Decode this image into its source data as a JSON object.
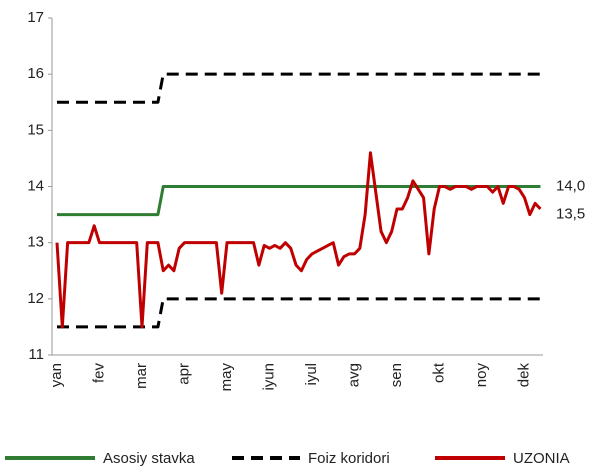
{
  "chart_data": {
    "type": "line",
    "categories": [
      "yan",
      null,
      null,
      null,
      null,
      null,
      null,
      null,
      "fev",
      null,
      null,
      null,
      null,
      null,
      null,
      null,
      "mar",
      null,
      null,
      null,
      null,
      null,
      null,
      null,
      "apr",
      null,
      null,
      null,
      null,
      null,
      null,
      null,
      "may",
      null,
      null,
      null,
      null,
      null,
      null,
      null,
      "iyun",
      null,
      null,
      null,
      null,
      null,
      null,
      null,
      "iyul",
      null,
      null,
      null,
      null,
      null,
      null,
      null,
      "avg",
      null,
      null,
      null,
      null,
      null,
      null,
      null,
      "sen",
      null,
      null,
      null,
      null,
      null,
      null,
      null,
      "okt",
      null,
      null,
      null,
      null,
      null,
      null,
      null,
      "noy",
      null,
      null,
      null,
      null,
      null,
      null,
      null,
      "dek",
      null,
      null,
      null
    ],
    "series": [
      {
        "name": "Asosiy stavka",
        "color": "#2e7d32",
        "dash": false,
        "values": [
          13.5,
          13.5,
          13.5,
          13.5,
          13.5,
          13.5,
          13.5,
          13.5,
          13.5,
          13.5,
          13.5,
          13.5,
          13.5,
          13.5,
          13.5,
          13.5,
          13.5,
          13.5,
          13.5,
          13.5,
          14,
          14,
          14,
          14,
          14,
          14,
          14,
          14,
          14,
          14,
          14,
          14,
          14,
          14,
          14,
          14,
          14,
          14,
          14,
          14,
          14,
          14,
          14,
          14,
          14,
          14,
          14,
          14,
          14,
          14,
          14,
          14,
          14,
          14,
          14,
          14,
          14,
          14,
          14,
          14,
          14,
          14,
          14,
          14,
          14,
          14,
          14,
          14,
          14,
          14,
          14,
          14,
          14,
          14,
          14,
          14,
          14,
          14,
          14,
          14,
          14,
          14,
          14,
          14,
          14,
          14,
          14,
          14,
          14,
          14,
          14,
          14
        ]
      },
      {
        "name": "Foiz koridori",
        "color": "#000000",
        "dash": true,
        "values": [
          15.5,
          15.5,
          15.5,
          15.5,
          15.5,
          15.5,
          15.5,
          15.5,
          15.5,
          15.5,
          15.5,
          15.5,
          15.5,
          15.5,
          15.5,
          15.5,
          15.5,
          15.5,
          15.5,
          15.5,
          16,
          16,
          16,
          16,
          16,
          16,
          16,
          16,
          16,
          16,
          16,
          16,
          16,
          16,
          16,
          16,
          16,
          16,
          16,
          16,
          16,
          16,
          16,
          16,
          16,
          16,
          16,
          16,
          16,
          16,
          16,
          16,
          16,
          16,
          16,
          16,
          16,
          16,
          16,
          16,
          16,
          16,
          16,
          16,
          16,
          16,
          16,
          16,
          16,
          16,
          16,
          16,
          16,
          16,
          16,
          16,
          16,
          16,
          16,
          16,
          16,
          16,
          16,
          16,
          16,
          16,
          16,
          16,
          16,
          16,
          16,
          16
        ]
      },
      {
        "color": "#000000",
        "dash": true,
        "values": [
          11.5,
          11.5,
          11.5,
          11.5,
          11.5,
          11.5,
          11.5,
          11.5,
          11.5,
          11.5,
          11.5,
          11.5,
          11.5,
          11.5,
          11.5,
          11.5,
          11.5,
          11.5,
          11.5,
          11.5,
          12,
          12,
          12,
          12,
          12,
          12,
          12,
          12,
          12,
          12,
          12,
          12,
          12,
          12,
          12,
          12,
          12,
          12,
          12,
          12,
          12,
          12,
          12,
          12,
          12,
          12,
          12,
          12,
          12,
          12,
          12,
          12,
          12,
          12,
          12,
          12,
          12,
          12,
          12,
          12,
          12,
          12,
          12,
          12,
          12,
          12,
          12,
          12,
          12,
          12,
          12,
          12,
          12,
          12,
          12,
          12,
          12,
          12,
          12,
          12,
          12,
          12,
          12,
          12,
          12,
          12,
          12,
          12,
          12,
          12,
          12,
          12
        ]
      },
      {
        "name": "UZONIA",
        "color": "#c00000",
        "dash": false,
        "values": [
          13,
          11.5,
          13,
          13,
          13,
          13,
          13,
          13.3,
          13,
          13,
          13,
          13,
          13,
          13,
          13,
          13,
          11.5,
          13,
          13,
          13,
          12.5,
          12.6,
          12.5,
          12.9,
          13,
          13,
          13,
          13,
          13,
          13,
          13,
          12.1,
          13,
          13,
          13,
          13,
          13,
          13,
          12.6,
          12.95,
          12.9,
          12.95,
          12.9,
          13,
          12.9,
          12.6,
          12.5,
          12.7,
          12.8,
          12.85,
          12.9,
          12.95,
          13,
          12.6,
          12.75,
          12.8,
          12.8,
          12.9,
          13.5,
          14.6,
          13.9,
          13.2,
          13,
          13.2,
          13.6,
          13.6,
          13.8,
          14.1,
          13.95,
          13.8,
          12.8,
          13.6,
          14,
          14,
          13.95,
          14,
          14,
          14,
          13.95,
          14,
          14,
          14,
          13.9,
          14,
          13.7,
          14,
          14,
          13.95,
          13.8,
          13.5,
          13.7,
          13.6
        ]
      }
    ],
    "annotations": [
      {
        "value": 14,
        "label": "14,0"
      },
      {
        "value": 13.5,
        "label": "13,5"
      }
    ],
    "ylim": [
      11,
      17
    ],
    "yticks": [
      11,
      12,
      13,
      14,
      15,
      16,
      17
    ],
    "grid": false
  }
}
